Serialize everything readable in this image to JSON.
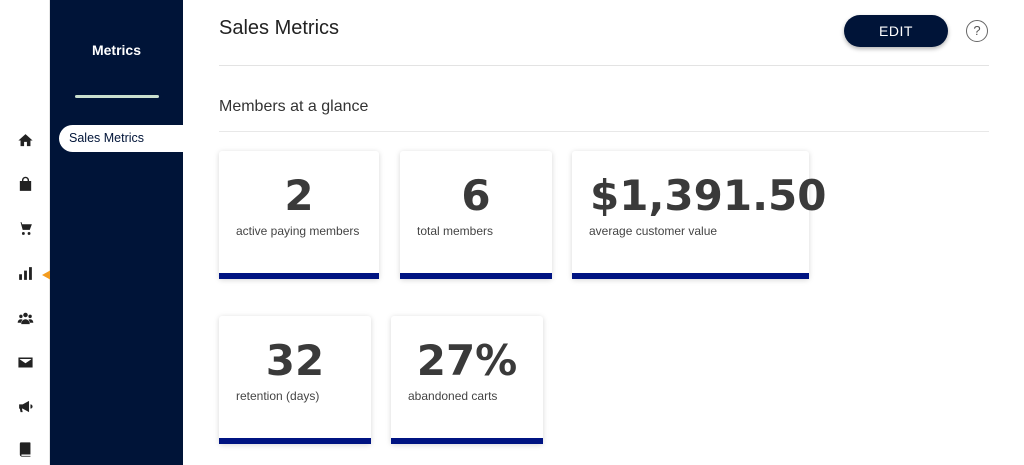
{
  "rail": {
    "items": [
      {
        "icon": "home-icon"
      },
      {
        "icon": "store-icon"
      },
      {
        "icon": "cart-icon"
      },
      {
        "icon": "bar-chart-icon"
      },
      {
        "icon": "users-icon"
      },
      {
        "icon": "mail-icon"
      },
      {
        "icon": "megaphone-icon"
      },
      {
        "icon": "book-icon"
      }
    ],
    "annotation_arrow_color": "#f39c1f"
  },
  "subnav": {
    "title": "Metrics",
    "active_item": "Sales Metrics"
  },
  "header": {
    "title": "Sales Metrics",
    "edit_label": "EDIT",
    "help_label": "?"
  },
  "section": {
    "title": "Members at a glance"
  },
  "cards": [
    {
      "value": "2",
      "label": "active paying members"
    },
    {
      "value": "6",
      "label": "total members"
    },
    {
      "value": "$1,391.50",
      "label": "average customer value"
    },
    {
      "value": "32",
      "label": "retention (days)"
    },
    {
      "value": "27%",
      "label": "abandoned carts"
    }
  ],
  "colors": {
    "navy": "#001438",
    "card_accent": "#001482",
    "arrow": "#f39c1f"
  }
}
